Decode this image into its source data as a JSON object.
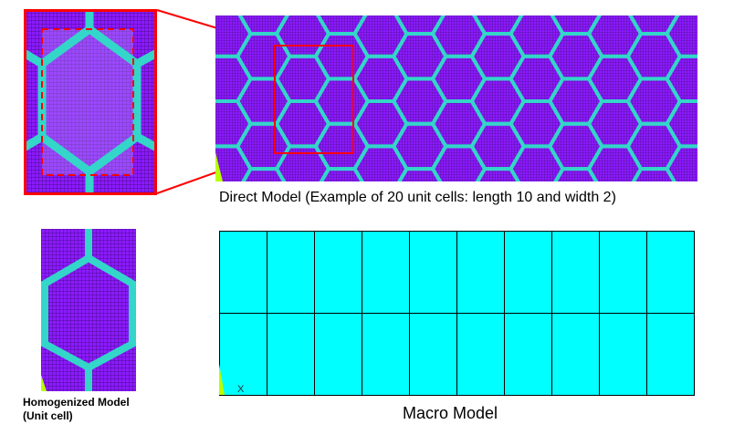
{
  "captions": {
    "direct_model": "Direct Model (Example of 20 unit cells: length 10 and width 2)",
    "homogenized_line1": "Homogenized Model",
    "homogenized_line2": "(Unit cell)",
    "macro_model": "Macro Model"
  },
  "macro_model": {
    "columns": 10,
    "rows": 2,
    "axis_label": "X"
  },
  "colors": {
    "matrix": "#8c1aff",
    "mesh_line": "#3a0a6e",
    "cell_wall": "#33d6c8",
    "macro_fill": "#00ffff",
    "highlight": "#ff0000"
  }
}
